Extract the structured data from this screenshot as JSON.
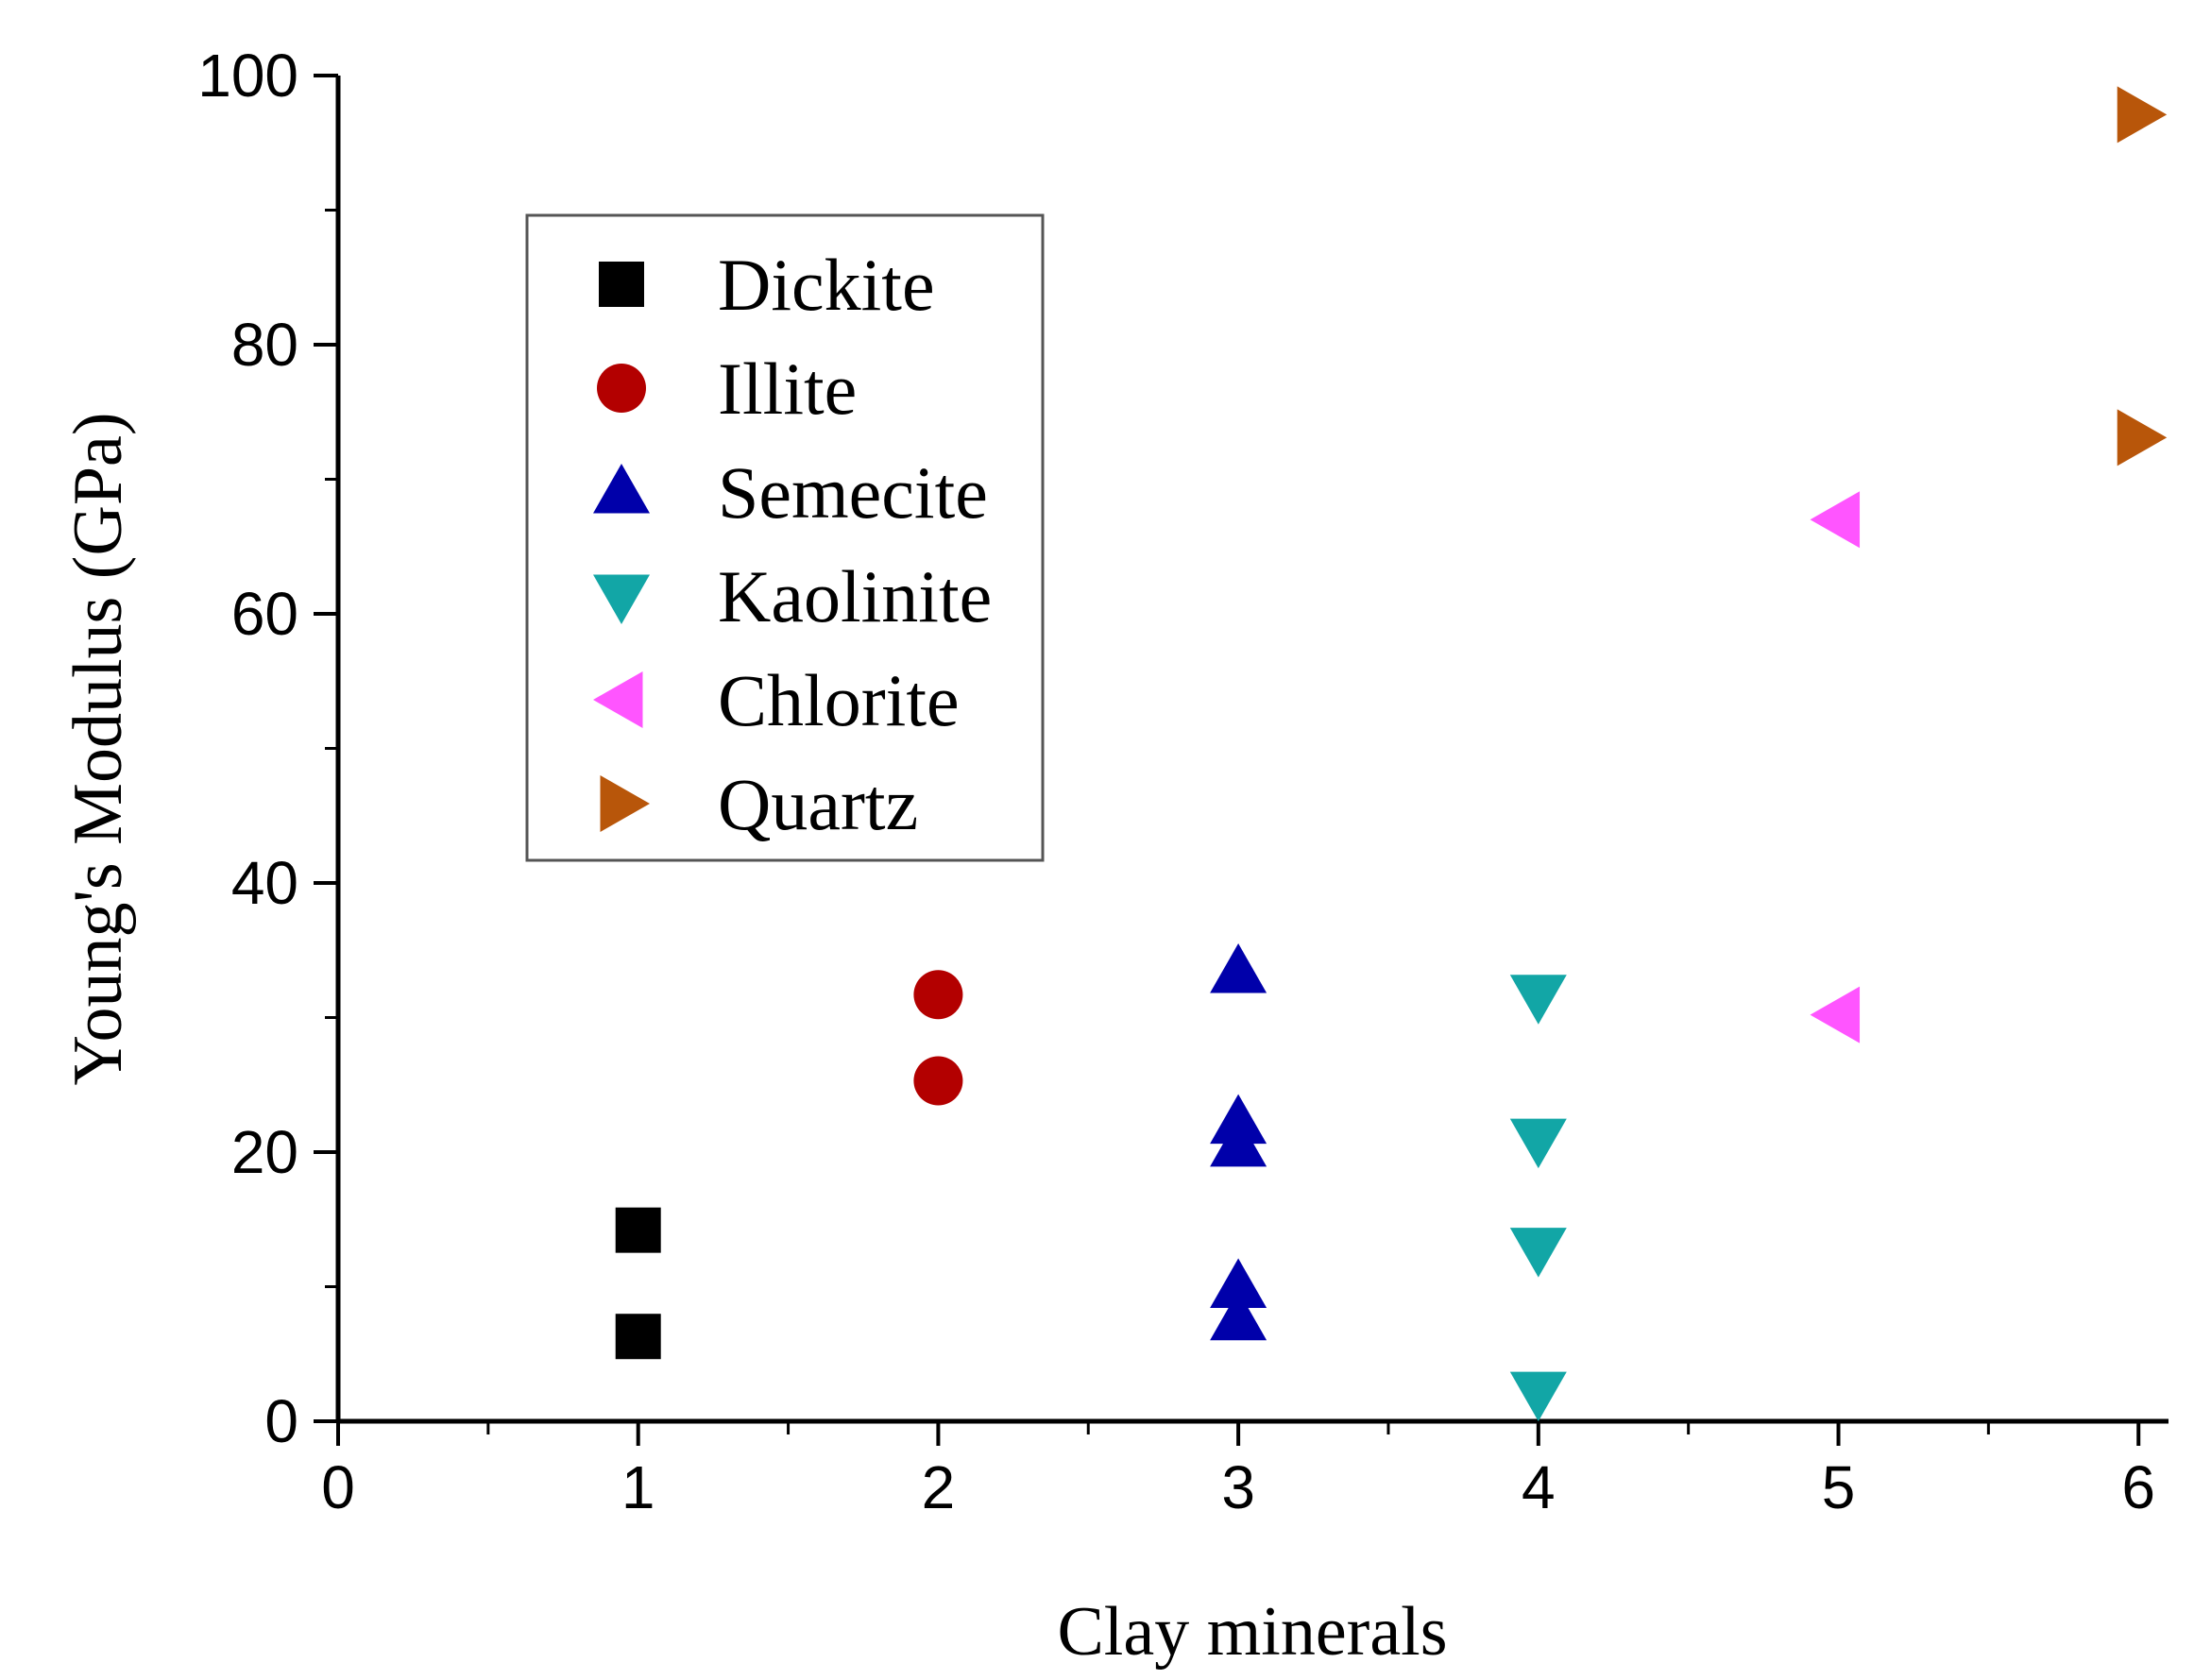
{
  "chart_data": {
    "type": "scatter",
    "title": "",
    "xlabel": "Clay minerals",
    "ylabel": "Young's Modulus (GPa)",
    "xlim": [
      0,
      6.1
    ],
    "ylim": [
      0,
      100
    ],
    "xticks": [
      0,
      1,
      2,
      3,
      4,
      5,
      6
    ],
    "yticks": [
      0,
      20,
      40,
      60,
      80,
      100
    ],
    "grid": false,
    "legend_position": "top-left",
    "series": [
      {
        "name": "Dickite",
        "marker": "square",
        "color": "#000000",
        "x": [
          1,
          1
        ],
        "y": [
          14.2,
          6.3
        ]
      },
      {
        "name": "Illite",
        "marker": "circle",
        "color": "#b30000",
        "x": [
          2,
          2
        ],
        "y": [
          31.7,
          25.3
        ]
      },
      {
        "name": "Semecite",
        "marker": "triangle-up",
        "color": "#0000aa",
        "x": [
          3,
          3,
          3,
          3,
          3
        ],
        "y": [
          33.4,
          22.2,
          20.5,
          10.0,
          7.6
        ]
      },
      {
        "name": "Kaolinite",
        "marker": "triangle-down",
        "color": "#12a6a6",
        "x": [
          4,
          4,
          4,
          4
        ],
        "y": [
          31.6,
          20.9,
          12.8,
          2.1
        ]
      },
      {
        "name": "Chlorite",
        "marker": "triangle-left",
        "color": "#ff55ff",
        "x": [
          5,
          5
        ],
        "y": [
          67.0,
          30.2
        ]
      },
      {
        "name": "Quartz",
        "marker": "triangle-right",
        "color": "#b8560a",
        "x": [
          6,
          6
        ],
        "y": [
          97.1,
          73.1
        ]
      }
    ]
  }
}
